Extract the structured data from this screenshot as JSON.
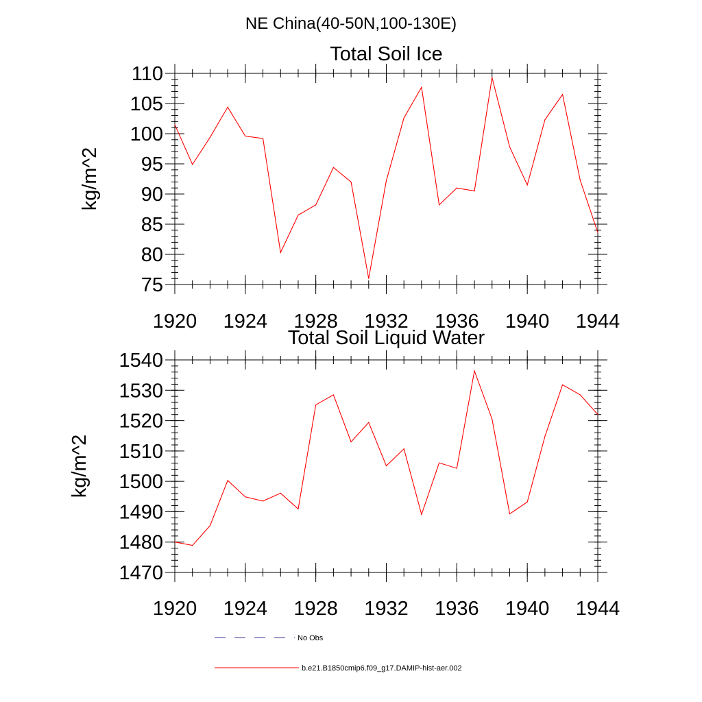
{
  "figure_title": "NE China(40-50N,100-130E)",
  "colors": {
    "model_line": "#ff0000",
    "obs_line": "#3a3a9a",
    "axes": "#000000"
  },
  "legend": {
    "entries": [
      {
        "label": "No Obs",
        "style": "dashed",
        "color": "#3a3a9a"
      },
      {
        "label": "b.e21.B1850cmip6.f09_g17.DAMIP-hist-aer.002",
        "style": "solid",
        "color": "#ff0000"
      }
    ]
  },
  "chart_data": [
    {
      "type": "line",
      "title": "Total Soil Ice",
      "ylabel": "kg/m^2",
      "xlim": [
        1920,
        1944
      ],
      "ylim": [
        75,
        110
      ],
      "x_ticks": [
        "1920",
        "1924",
        "1928",
        "1932",
        "1936",
        "1940",
        "1944"
      ],
      "y_ticks": [
        "75",
        "80",
        "85",
        "90",
        "95",
        "100",
        "105",
        "110"
      ],
      "x_minor_step": 1,
      "y_minor_step": 1,
      "grid": false,
      "x": [
        1920,
        1921,
        1922,
        1923,
        1924,
        1925,
        1926,
        1927,
        1928,
        1929,
        1930,
        1931,
        1932,
        1933,
        1934,
        1935,
        1936,
        1937,
        1938,
        1939,
        1940,
        1941,
        1942,
        1943,
        1944
      ],
      "series": [
        {
          "values": [
            101.5,
            94.9,
            99.4,
            104.4,
            99.6,
            99.2,
            80.3,
            86.5,
            88.2,
            94.4,
            92.0,
            76.0,
            92.2,
            102.6,
            107.7,
            88.2,
            91.0,
            90.5,
            109.3,
            97.8,
            91.5,
            102.3,
            106.5,
            92.3,
            83.6
          ]
        }
      ]
    },
    {
      "type": "line",
      "title": "Total Soil Liquid Water",
      "ylabel": "kg/m^2",
      "xlim": [
        1920,
        1944
      ],
      "ylim": [
        1470,
        1540
      ],
      "x_ticks": [
        "1920",
        "1924",
        "1928",
        "1932",
        "1936",
        "1940",
        "1944"
      ],
      "y_ticks": [
        "1470",
        "1480",
        "1490",
        "1500",
        "1510",
        "1520",
        "1530",
        "1540"
      ],
      "x_minor_step": 1,
      "y_minor_step": 2,
      "grid": false,
      "x": [
        1920,
        1921,
        1922,
        1923,
        1924,
        1925,
        1926,
        1927,
        1928,
        1929,
        1930,
        1931,
        1932,
        1933,
        1934,
        1935,
        1936,
        1937,
        1938,
        1939,
        1940,
        1941,
        1942,
        1943,
        1944
      ],
      "series": [
        {
          "values": [
            1480.0,
            1478.9,
            1485.4,
            1500.3,
            1494.9,
            1493.5,
            1496.1,
            1490.9,
            1525.2,
            1528.5,
            1513.0,
            1519.4,
            1505.1,
            1510.7,
            1489.1,
            1506.1,
            1504.3,
            1536.4,
            1520.5,
            1489.3,
            1493.2,
            1514.8,
            1531.8,
            1528.5,
            1522.0
          ]
        }
      ]
    }
  ]
}
